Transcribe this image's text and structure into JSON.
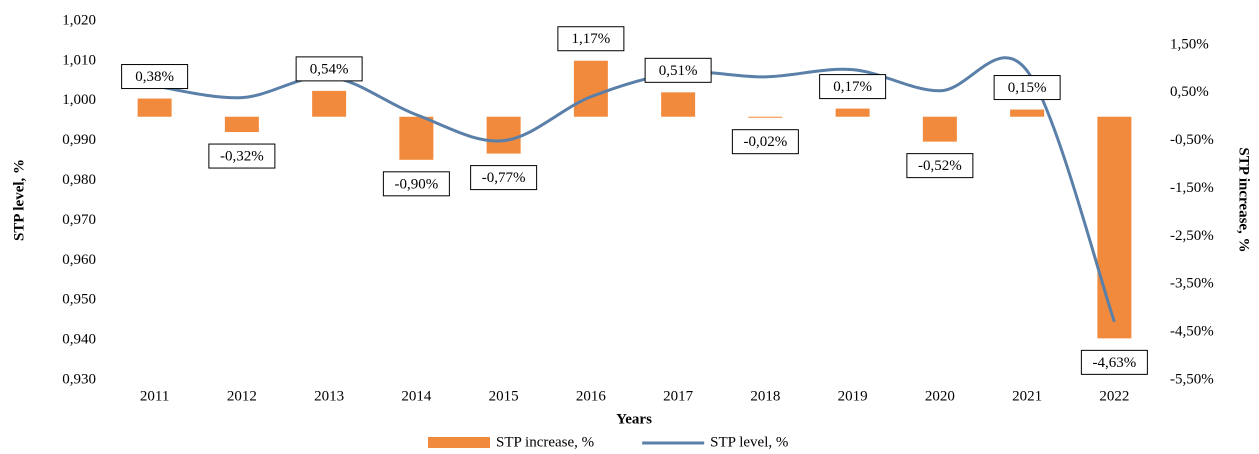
{
  "chart_data": {
    "type": "bar",
    "x_label": "Years",
    "y_label": "STP level, %",
    "y2_label": "STP increase, %",
    "categories": [
      "2011",
      "2012",
      "2013",
      "2014",
      "2015",
      "2016",
      "2017",
      "2018",
      "2019",
      "2020",
      "2021",
      "2022"
    ],
    "series": [
      {
        "name": "STP increase, %",
        "type": "bar",
        "axis": "y2",
        "color": "#f28a3d",
        "values": [
          0.38,
          -0.32,
          0.54,
          -0.9,
          -0.77,
          1.17,
          0.51,
          -0.02,
          0.17,
          -0.52,
          0.15,
          -4.63
        ],
        "value_labels": [
          "0,38%",
          "-0,32%",
          "0,54%",
          "-0,90%",
          "-0,77%",
          "1,17%",
          "0,51%",
          "-0,02%",
          "0,17%",
          "-0,52%",
          "0,15%",
          "-4,63%"
        ]
      },
      {
        "name": "STP level, %",
        "type": "line",
        "color": "#5a7fa8",
        "values": [
          1.0037,
          1.0008,
          1.006,
          0.9965,
          0.99,
          1.001,
          1.007,
          1.006,
          1.0078,
          1.0025,
          1.0075,
          0.9446
        ]
      }
    ],
    "ylim": [
      0.93,
      1.02
    ],
    "yticks": [
      {
        "value": 0.93,
        "label": "0,930"
      },
      {
        "value": 0.94,
        "label": "0,940"
      },
      {
        "value": 0.95,
        "label": "0,950"
      },
      {
        "value": 0.96,
        "label": "0,960"
      },
      {
        "value": 0.97,
        "label": "0,970"
      },
      {
        "value": 0.98,
        "label": "0,980"
      },
      {
        "value": 0.99,
        "label": "0,990"
      },
      {
        "value": 1.0,
        "label": "1,000"
      },
      {
        "value": 1.01,
        "label": "1,010"
      },
      {
        "value": 1.02,
        "label": "1,020"
      }
    ],
    "y2lim": [
      -5.5,
      2.0
    ],
    "y2ticks": [
      {
        "value": -5.5,
        "label": "-5,50%"
      },
      {
        "value": -4.5,
        "label": "-4,50%"
      },
      {
        "value": -3.5,
        "label": "-3,50%"
      },
      {
        "value": -2.5,
        "label": "-2,50%"
      },
      {
        "value": -1.5,
        "label": "-1,50%"
      },
      {
        "value": -0.5,
        "label": "-0,50%"
      },
      {
        "value": 0.5,
        "label": "0,50%"
      },
      {
        "value": 1.5,
        "label": "1,50%"
      }
    ],
    "legend": "bottom",
    "grid": false
  }
}
